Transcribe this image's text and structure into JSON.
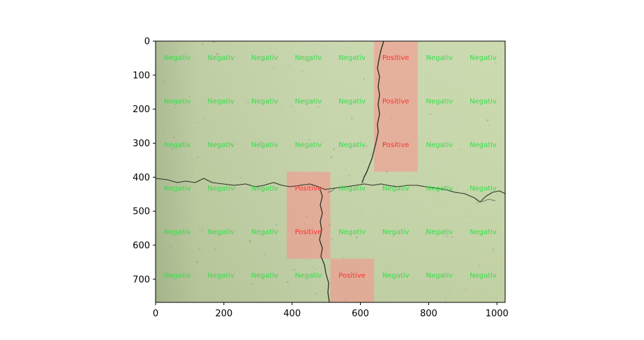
{
  "chart_data": {
    "type": "heatmap",
    "title": "",
    "xlabel": "",
    "ylabel": "",
    "image_width": 1024,
    "image_height": 768,
    "xlim": [
      0,
      1024
    ],
    "ylim": [
      768,
      0
    ],
    "xticks": [
      0,
      200,
      400,
      600,
      800,
      1000
    ],
    "yticks": [
      0,
      100,
      200,
      300,
      400,
      500,
      600,
      700
    ],
    "grid": false,
    "cell_size": 128,
    "label_positive": "Positive",
    "label_negative": "Negativ",
    "colors": {
      "positive_text": "#ff3030",
      "negative_text": "#33e04a",
      "positive_overlay": "#ff8a8a",
      "background_concrete": "#c4d3a8"
    },
    "background_image": "concrete surface photograph with crack",
    "grid_labels": [
      [
        "Negativ",
        "Negativ",
        "Negativ",
        "Negativ",
        "Negativ",
        "Positive",
        "Negativ",
        "Negativ"
      ],
      [
        "Negativ",
        "Negativ",
        "Negativ",
        "Negativ",
        "Negativ",
        "Positive",
        "Negativ",
        "Negativ"
      ],
      [
        "Negativ",
        "Negativ",
        "Negativ",
        "Negativ",
        "Negativ",
        "Positive",
        "Negativ",
        "Negativ"
      ],
      [
        "Negativ",
        "Negativ",
        "Negativ",
        "Positive",
        "Negativ",
        "Negativ",
        "Negativ",
        "Negativ"
      ],
      [
        "Negativ",
        "Negativ",
        "Negativ",
        "Positive",
        "Negativ",
        "Negativ",
        "Negativ",
        "Negativ"
      ],
      [
        "Negativ",
        "Negativ",
        "Negativ",
        "Negativ",
        "Positive",
        "Negativ",
        "Negativ",
        "Negativ"
      ]
    ]
  }
}
